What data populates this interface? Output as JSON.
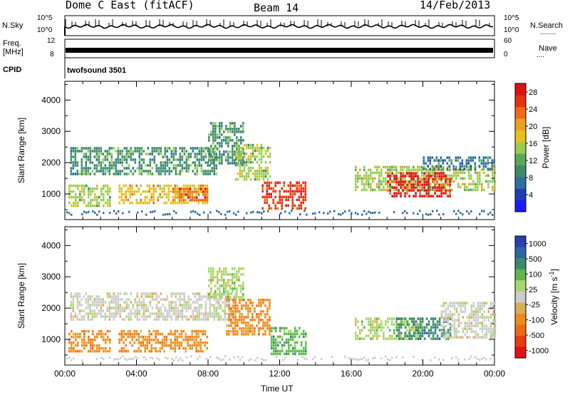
{
  "header": {
    "station": "Dome C East (fitACF)",
    "beam": "Beam 14",
    "date": "14/Feb/2013"
  },
  "top_panels": {
    "nsky_label": "N.Sky",
    "nsearch_label": "N.Search",
    "nsearch_marker": "........",
    "freq_label_line1": "Freq.",
    "freq_label_line2": "[MHz]",
    "nave_label": "Nave",
    "nave_marker": "....",
    "cpid_label": "CPID",
    "cpid_value": "twofsound 3501",
    "nsky_ticks_left": [
      "10^5",
      "10^0"
    ],
    "nsky_ticks_right": [
      "10^5",
      "10^0"
    ],
    "freq_ticks_left": [
      "12",
      "8"
    ],
    "nave_ticks_right": [
      "60",
      "0"
    ]
  },
  "x_axis": {
    "label": "Time UT",
    "ticks": [
      "00:00",
      "04:00",
      "08:00",
      "12:00",
      "16:00",
      "20:00",
      "00:00"
    ]
  },
  "colors": {
    "power_scale": [
      "#1a1aff",
      "#1f3fb0",
      "#2f6f9f",
      "#3d8c6a",
      "#5aa85a",
      "#9acd4f",
      "#e8c01e",
      "#f0a020",
      "#ef6a14",
      "#e83010",
      "#e01010"
    ],
    "velocity_scale": [
      "#2a3fb0",
      "#2d64a8",
      "#3a8a6a",
      "#5cb84a",
      "#a8d86a",
      "#cccccc",
      "#d8b050",
      "#f08a1a",
      "#ee6a10",
      "#ea3a10",
      "#e51010"
    ]
  },
  "chart_data": [
    {
      "type": "heatmap",
      "title": "",
      "xlabel": "",
      "ylabel": "Slant Range [km]",
      "x_ticks": [
        "00:00",
        "04:00",
        "08:00",
        "12:00",
        "16:00",
        "20:00",
        "00:00"
      ],
      "y_ticks": [
        "1000",
        "2000",
        "3000",
        "4000"
      ],
      "ylim": [
        180,
        4600
      ],
      "colorbar": {
        "label": "Power [dB]",
        "ticks": [
          "4",
          "8",
          "12",
          "16",
          "20",
          "24",
          "28"
        ],
        "range": [
          0,
          30
        ]
      },
      "regions": [
        {
          "t_start": 0.3,
          "t_end": 8.5,
          "r_start": 1600,
          "r_end": 2500,
          "value": 10
        },
        {
          "t_start": 0.2,
          "t_end": 2.5,
          "r_start": 600,
          "r_end": 1300,
          "value": 14
        },
        {
          "t_start": 3.0,
          "t_end": 8.0,
          "r_start": 700,
          "r_end": 1300,
          "value": 18
        },
        {
          "t_start": 6.0,
          "t_end": 8.0,
          "r_start": 800,
          "r_end": 1200,
          "value": 24
        },
        {
          "t_start": 8.0,
          "t_end": 10.0,
          "r_start": 2000,
          "r_end": 3300,
          "value": 10
        },
        {
          "t_start": 9.5,
          "t_end": 11.5,
          "r_start": 1500,
          "r_end": 2600,
          "value": 14
        },
        {
          "t_start": 11.0,
          "t_end": 13.5,
          "r_start": 500,
          "r_end": 1400,
          "value": 26
        },
        {
          "t_start": 16.2,
          "t_end": 24.0,
          "r_start": 1100,
          "r_end": 1900,
          "value": 16
        },
        {
          "t_start": 18.0,
          "t_end": 21.5,
          "r_start": 900,
          "r_end": 1700,
          "value": 28
        },
        {
          "t_start": 20.0,
          "t_end": 24.0,
          "r_start": 1800,
          "r_end": 2200,
          "value": 8
        }
      ]
    },
    {
      "type": "heatmap",
      "title": "",
      "xlabel": "Time UT",
      "ylabel": "Slant Range [km]",
      "x_ticks": [
        "00:00",
        "04:00",
        "08:00",
        "12:00",
        "16:00",
        "20:00",
        "00:00"
      ],
      "y_ticks": [
        "1000",
        "2000",
        "3000",
        "4000"
      ],
      "ylim": [
        180,
        4600
      ],
      "colorbar": {
        "label": "Velocity [m s^-1]",
        "ticks": [
          "1000",
          "500",
          "100",
          "25",
          "-25",
          "-100",
          "-500",
          "-1000"
        ],
        "range": [
          -1000,
          1000
        ]
      },
      "regions": [
        {
          "t_start": 0.3,
          "t_end": 9.5,
          "r_start": 1600,
          "r_end": 2500,
          "value": 0
        },
        {
          "t_start": 0.2,
          "t_end": 2.5,
          "r_start": 600,
          "r_end": 1300,
          "value": -300
        },
        {
          "t_start": 3.0,
          "t_end": 8.0,
          "r_start": 600,
          "r_end": 1300,
          "value": -300
        },
        {
          "t_start": 9.0,
          "t_end": 11.5,
          "r_start": 1200,
          "r_end": 2300,
          "value": -400
        },
        {
          "t_start": 8.0,
          "t_end": 10.0,
          "r_start": 2300,
          "r_end": 3300,
          "value": 100
        },
        {
          "t_start": 11.5,
          "t_end": 13.5,
          "r_start": 500,
          "r_end": 1400,
          "value": 300
        },
        {
          "t_start": 16.2,
          "t_end": 20.0,
          "r_start": 1000,
          "r_end": 1700,
          "value": 100
        },
        {
          "t_start": 18.5,
          "t_end": 21.5,
          "r_start": 1000,
          "r_end": 1700,
          "value": 600
        },
        {
          "t_start": 21.0,
          "t_end": 24.0,
          "r_start": 1100,
          "r_end": 2200,
          "value": 60
        }
      ]
    }
  ]
}
